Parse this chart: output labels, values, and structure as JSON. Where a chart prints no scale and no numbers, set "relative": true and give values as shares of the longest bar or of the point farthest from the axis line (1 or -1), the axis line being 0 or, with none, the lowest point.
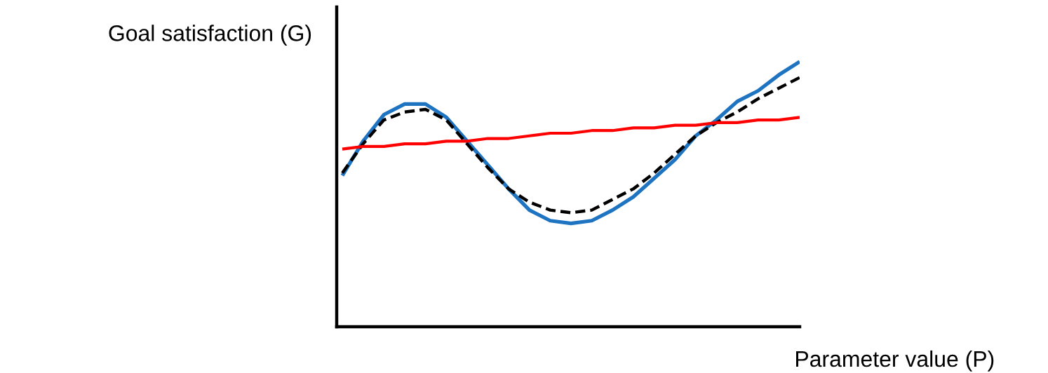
{
  "chart_data": {
    "type": "line",
    "relative": true,
    "xlabel": "Parameter value (P)",
    "ylabel": "Goal satisfaction (G)",
    "marker": "none",
    "tick_labels": false,
    "categories": [
      null,
      null,
      null,
      null,
      null,
      null,
      null,
      null,
      null,
      null,
      null,
      null,
      null,
      null,
      null,
      null,
      null,
      null,
      null,
      null,
      null,
      null,
      null
    ],
    "series": [
      {
        "color": "#1f74c2",
        "line_style": "solid",
        "values": [
          0.57,
          0.7,
          0.8,
          0.84,
          0.84,
          0.79,
          0.7,
          0.61,
          0.52,
          0.44,
          0.4,
          0.39,
          0.4,
          0.44,
          0.49,
          0.56,
          0.63,
          0.72,
          0.78,
          0.85,
          0.89,
          0.95,
          1.0
        ]
      },
      {
        "color": "#000000",
        "line_style": "dashed",
        "values": [
          0.58,
          0.69,
          0.78,
          0.81,
          0.82,
          0.78,
          0.69,
          0.6,
          0.52,
          0.47,
          0.44,
          0.43,
          0.44,
          0.48,
          0.52,
          0.58,
          0.65,
          0.72,
          0.77,
          0.81,
          0.86,
          0.9,
          0.94
        ]
      },
      {
        "color": "#ff0000",
        "line_style": "solid",
        "values": [
          0.67,
          0.68,
          0.68,
          0.69,
          0.69,
          0.7,
          0.7,
          0.71,
          0.71,
          0.72,
          0.73,
          0.73,
          0.74,
          0.74,
          0.75,
          0.75,
          0.76,
          0.76,
          0.77,
          0.77,
          0.78,
          0.78,
          0.79
        ]
      }
    ]
  }
}
